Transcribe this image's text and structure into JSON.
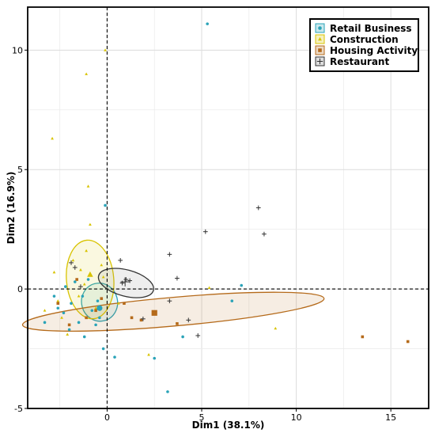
{
  "chart_data": {
    "type": "scatter",
    "xlabel": "Dim1 (38.1%)",
    "ylabel": "Dim2 (16.9%)",
    "xlim": [
      -4.2,
      17
    ],
    "ylim": [
      -5,
      11.8
    ],
    "xticks": [
      0,
      5,
      10,
      15
    ],
    "yticks": [
      -5,
      0,
      5,
      10
    ],
    "grid": true,
    "legend_position": "top-right",
    "reference_lines": {
      "x": 0,
      "y": 0,
      "style": "dashed"
    },
    "series": [
      {
        "name": "Retail Business",
        "marker": "circle",
        "color": "#2aa3b8",
        "mean": [
          -0.4,
          -0.8
        ],
        "ellipse": {
          "cx": -0.4,
          "cy": -0.55,
          "rx": 0.95,
          "ry": 0.8,
          "angle_deg": -15
        },
        "points": [
          [
            5.3,
            11.1
          ],
          [
            -0.1,
            3.5
          ],
          [
            7.1,
            0.15
          ],
          [
            6.6,
            -0.5
          ],
          [
            4.0,
            -2.0
          ],
          [
            3.2,
            -4.3
          ],
          [
            2.5,
            -2.9
          ],
          [
            0.4,
            -2.85
          ],
          [
            -0.2,
            -2.5
          ],
          [
            -0.6,
            -1.5
          ],
          [
            -1.2,
            -2.0
          ],
          [
            -1.5,
            -1.4
          ],
          [
            -2.0,
            -1.7
          ],
          [
            -2.3,
            -1.0
          ],
          [
            -3.3,
            -1.4
          ],
          [
            -2.8,
            -0.3
          ],
          [
            -1.7,
            0.3
          ],
          [
            -1.3,
            -0.3
          ],
          [
            -0.8,
            -0.9
          ],
          [
            -0.4,
            -1.2
          ],
          [
            -1.9,
            -0.6
          ],
          [
            -2.6,
            -0.8
          ],
          [
            -1.0,
            0.4
          ],
          [
            -0.5,
            -0.5
          ],
          [
            -2.2,
            0.1
          ]
        ]
      },
      {
        "name": "Construction",
        "marker": "triangle",
        "color": "#d8c300",
        "mean": [
          -0.9,
          0.6
        ],
        "ellipse": {
          "cx": -0.9,
          "cy": 0.4,
          "rx": 1.25,
          "ry": 1.65,
          "angle_deg": -5
        },
        "points": [
          [
            -0.1,
            10.0
          ],
          [
            -1.1,
            9.0
          ],
          [
            -2.9,
            6.3
          ],
          [
            -1.0,
            4.3
          ],
          [
            -0.9,
            2.7
          ],
          [
            -1.1,
            1.6
          ],
          [
            8.9,
            -1.65
          ],
          [
            5.4,
            0.05
          ],
          [
            2.2,
            -2.75
          ],
          [
            -2.8,
            0.7
          ],
          [
            -1.5,
            -0.3
          ],
          [
            -2.1,
            -1.9
          ],
          [
            -3.3,
            -0.9
          ],
          [
            -0.3,
            1.0
          ],
          [
            -1.8,
            1.2
          ],
          [
            -1.4,
            0.8
          ],
          [
            -0.6,
            -0.8
          ],
          [
            -2.4,
            -1.2
          ],
          [
            -1.2,
            0.2
          ],
          [
            -0.2,
            0.5
          ],
          [
            0.6,
            -0.6
          ],
          [
            -2.6,
            -0.5
          ]
        ]
      },
      {
        "name": "Housing Activity",
        "marker": "square",
        "color": "#b56a1a",
        "mean": [
          2.5,
          -1.0
        ],
        "ellipse": {
          "cx": 3.5,
          "cy": -0.95,
          "rx": 8.0,
          "ry": 0.6,
          "angle_deg": -5
        },
        "points": [
          [
            13.5,
            -2.0
          ],
          [
            15.9,
            -2.2
          ],
          [
            3.7,
            -1.45
          ],
          [
            1.3,
            -1.2
          ],
          [
            1.8,
            -1.3
          ],
          [
            -0.3,
            -0.4
          ],
          [
            -1.1,
            -1.2
          ],
          [
            -2.6,
            -0.6
          ],
          [
            -0.6,
            -0.9
          ],
          [
            -2.0,
            -1.5
          ],
          [
            0.9,
            -0.6
          ],
          [
            -1.6,
            0.4
          ]
        ]
      },
      {
        "name": "Restaurant",
        "marker": "plus",
        "color": "#333333",
        "mean": [
          0.95,
          0.3
        ],
        "ellipse": {
          "cx": 1.0,
          "cy": 0.25,
          "rx": 1.5,
          "ry": 0.55,
          "angle_deg": 15
        },
        "points": [
          [
            8.0,
            3.4
          ],
          [
            8.3,
            2.3
          ],
          [
            5.2,
            2.4
          ],
          [
            3.3,
            1.45
          ],
          [
            3.7,
            0.45
          ],
          [
            3.3,
            -0.5
          ],
          [
            4.3,
            -1.3
          ],
          [
            4.8,
            -1.95
          ],
          [
            1.9,
            -1.25
          ],
          [
            0.7,
            1.2
          ],
          [
            1.0,
            0.4
          ],
          [
            0.8,
            0.25
          ],
          [
            1.2,
            0.35
          ],
          [
            -1.9,
            1.1
          ],
          [
            -1.7,
            0.9
          ],
          [
            -1.4,
            0.1
          ]
        ]
      }
    ]
  }
}
